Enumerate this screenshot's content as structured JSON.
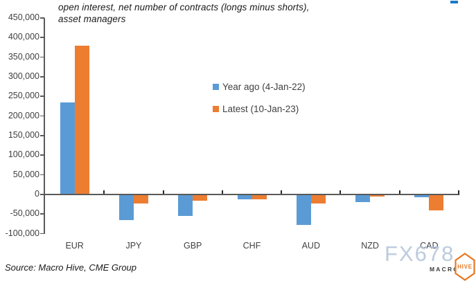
{
  "page": {
    "title_line1": "open interest, net number of contracts (longs minus shorts),",
    "title_line2": "asset managers",
    "source": "Source: Macro Hive, CME Group",
    "watermark": "FX678",
    "logo_macro": "MACRO",
    "logo_hive": "HIVE"
  },
  "colors": {
    "series_blue": "#5B9BD5",
    "series_orange": "#ED7D31",
    "axis_line": "#595959",
    "category_tick": "#262626",
    "axis_text": "#404040",
    "watermark_text": "#B5C6DA",
    "logo_orange": "#E87722",
    "top_right_mark": "#1A7AC9"
  },
  "chart_data": {
    "type": "bar",
    "title": "open interest, net number of contracts (longs minus shorts), asset managers",
    "xlabel": "",
    "ylabel": "",
    "categories": [
      "EUR",
      "JPY",
      "GBP",
      "CHF",
      "AUD",
      "NZD",
      "CAD"
    ],
    "series": [
      {
        "name": "Year ago (4-Jan-22)",
        "color": "#5B9BD5",
        "values": [
          234000,
          -64000,
          -53000,
          -11000,
          -75000,
          -18000,
          -5000
        ]
      },
      {
        "name": "Latest (10-Jan-23)",
        "color": "#ED7D31",
        "values": [
          380000,
          -21000,
          -14000,
          -10000,
          -21000,
          -4000,
          -39000
        ]
      }
    ],
    "ylim": [
      -100000,
      450000
    ],
    "ytick_step": 50000,
    "y_tick_labels": [
      "450,000",
      "400,000",
      "350,000",
      "300,000",
      "250,000",
      "200,000",
      "150,000",
      "100,000",
      "50,000",
      "0",
      "-50,000",
      "-100,000"
    ],
    "grid": false,
    "legend_position": "center, stacked vertically"
  }
}
